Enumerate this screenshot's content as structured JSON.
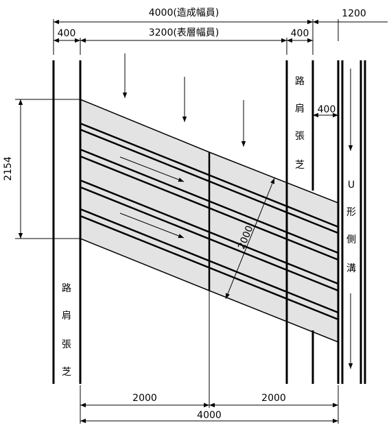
{
  "dimensions": {
    "overall_width": "4000(造成幅員)",
    "u_channel_width": "1200",
    "left_shoulder": "400",
    "surface_width": "3200(表層幅員)",
    "right_shoulder": "400",
    "gap_to_channel": "400",
    "skew_height": "2154",
    "diagonal_width": "2000",
    "bottom_left": "2000",
    "bottom_right": "2000",
    "bottom_total": "4000"
  },
  "labels": {
    "right_shoulder_chars": [
      "路",
      "肩",
      "張",
      "芝"
    ],
    "left_shoulder_chars": [
      "路",
      "肩",
      "張",
      "芝"
    ],
    "channel_chars": [
      "U",
      "形",
      "側",
      "溝"
    ]
  },
  "colors": {
    "panel_fill": "#e3e3e3",
    "line": "#000000"
  }
}
